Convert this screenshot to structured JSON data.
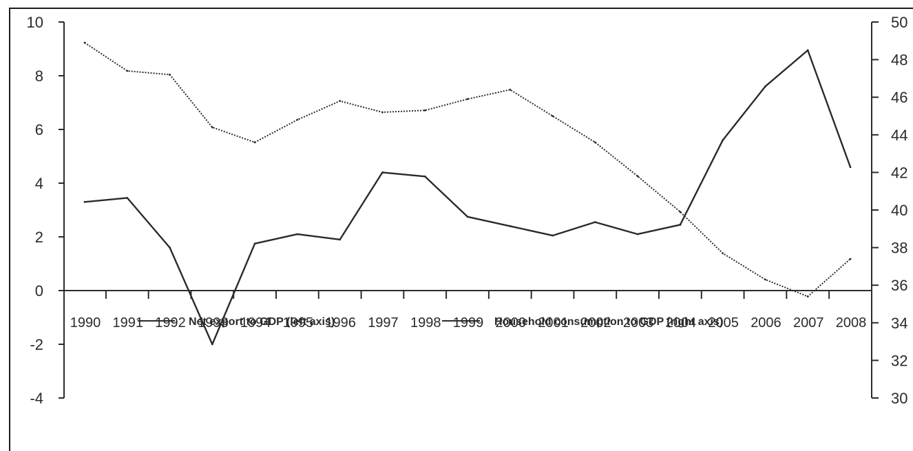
{
  "chart_data": {
    "type": "line",
    "x": [
      "1990",
      "1991",
      "1992",
      "1993",
      "1994",
      "1995",
      "1996",
      "1997",
      "1998",
      "1999",
      "2000",
      "2001",
      "2002",
      "2003",
      "2004",
      "2005",
      "2006",
      "2007",
      "2008"
    ],
    "x_tick_labels": [
      "1990",
      "1991",
      "1992",
      "1993",
      "1994",
      "1995",
      "1996",
      "1997",
      "1998",
      "1999",
      "2000",
      "2001",
      "2002",
      "2003",
      "2004",
      "2005",
      "2006",
      "2007",
      "2008"
    ],
    "left_axis": {
      "ylim": [
        -4,
        10
      ],
      "ticks": [
        10,
        8,
        6,
        4,
        2,
        0,
        -2,
        -4
      ],
      "tick_labels": [
        "10",
        "8",
        "6",
        "4",
        "2",
        "0",
        "-2",
        "-4"
      ]
    },
    "right_axis": {
      "ylim": [
        30,
        50
      ],
      "ticks": [
        50,
        48,
        46,
        44,
        42,
        40,
        38,
        36,
        34,
        32,
        30
      ],
      "tick_labels": [
        "50",
        "48",
        "46",
        "44",
        "42",
        "40",
        "38",
        "36",
        "34",
        "32",
        "30"
      ]
    },
    "series": [
      {
        "name": "Net export to GDP (left axis)",
        "axis": "left",
        "line_style": "solid",
        "values": [
          3.3,
          3.45,
          1.6,
          -2.0,
          1.75,
          2.1,
          1.9,
          4.4,
          4.25,
          2.75,
          2.4,
          2.05,
          2.55,
          2.1,
          2.45,
          5.6,
          7.6,
          8.95,
          4.6
        ]
      },
      {
        "name": "Household consumption to GDP (right axis)",
        "axis": "right",
        "line_style": "dotted",
        "values": [
          48.9,
          47.4,
          47.2,
          44.4,
          43.6,
          44.8,
          45.8,
          45.2,
          45.3,
          45.9,
          46.4,
          45.0,
          43.6,
          41.8,
          39.9,
          37.7,
          36.3,
          35.4,
          37.4
        ]
      }
    ],
    "legend_position": "bottom"
  },
  "colors": {
    "line": "#2a2a2a",
    "axis": "#2a2a2a",
    "frame": "#1a1a1a"
  }
}
